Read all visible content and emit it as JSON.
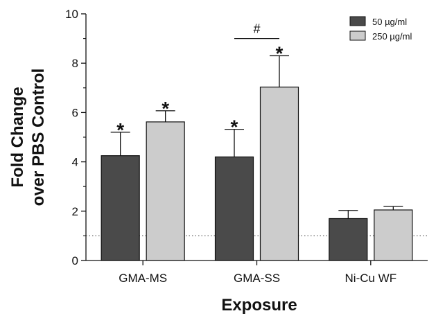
{
  "chart_data": {
    "type": "bar",
    "xlabel": "Exposure",
    "ylabel_lines": [
      "Fold Change",
      "over PBS Control"
    ],
    "categories": [
      "GMA-MS",
      "GMA-SS",
      "Ni-Cu WF"
    ],
    "ylim": [
      0,
      10
    ],
    "yticks": [
      0,
      2,
      4,
      6,
      8,
      10
    ],
    "y_tick_labels": [
      "0",
      "2",
      "4",
      "6",
      "8",
      "10"
    ],
    "grid": false,
    "legend_position": "top-right",
    "reference_line": {
      "value": 1.0,
      "style": "dotted"
    },
    "series": [
      {
        "name": "50 µg/ml",
        "color": "#4a4a4a",
        "values": [
          4.25,
          4.2,
          1.7
        ],
        "errors": [
          0.95,
          1.12,
          0.33
        ],
        "annotations": [
          "*",
          "*",
          ""
        ]
      },
      {
        "name": "250 µg/ml",
        "color": "#cccccc",
        "values": [
          5.62,
          7.03,
          2.05
        ],
        "errors": [
          0.45,
          1.27,
          0.14
        ],
        "annotations": [
          "*",
          "*",
          ""
        ]
      }
    ],
    "comparisons": [
      {
        "category": "GMA-SS",
        "label": "#",
        "y": 9.0
      }
    ]
  }
}
